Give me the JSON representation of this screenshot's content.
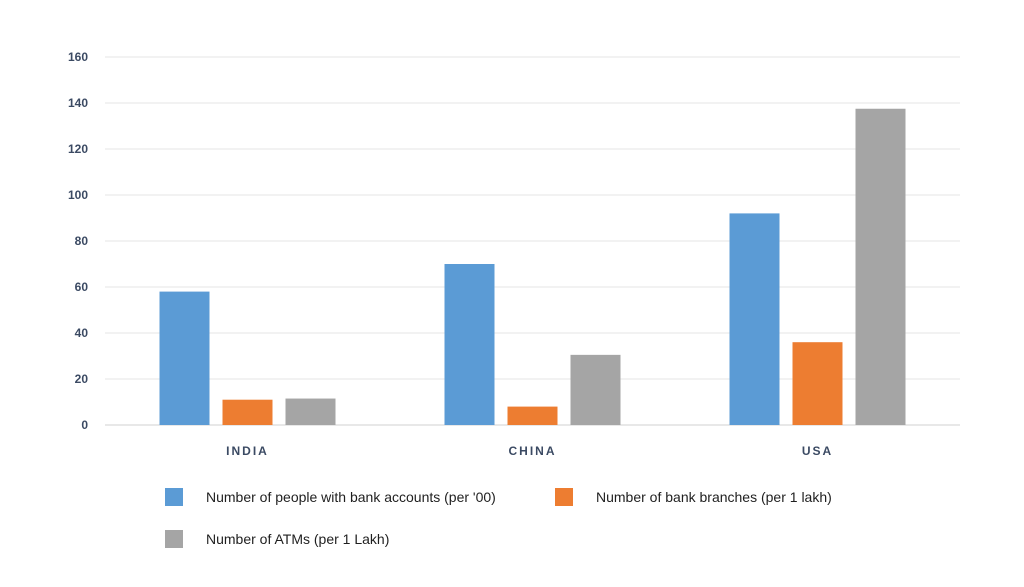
{
  "chart_data": {
    "type": "bar",
    "categories": [
      "INDIA",
      "CHINA",
      "USA"
    ],
    "series": [
      {
        "name": "Number of people with bank accounts (per '00)",
        "color": "#5b9bd5",
        "values": [
          58,
          70,
          92
        ]
      },
      {
        "name": "Number of bank branches (per 1 lakh)",
        "color": "#ed7d31",
        "values": [
          11,
          8,
          36
        ]
      },
      {
        "name": "Number of ATMs (per 1 Lakh)",
        "color": "#a5a5a5",
        "values": [
          11.5,
          30.5,
          137.5
        ]
      }
    ],
    "y_ticks": [
      "0",
      "20",
      "40",
      "60",
      "80",
      "100",
      "120",
      "140",
      "160"
    ],
    "ylim": [
      0,
      160
    ],
    "grid": true,
    "legend_position": "bottom"
  }
}
